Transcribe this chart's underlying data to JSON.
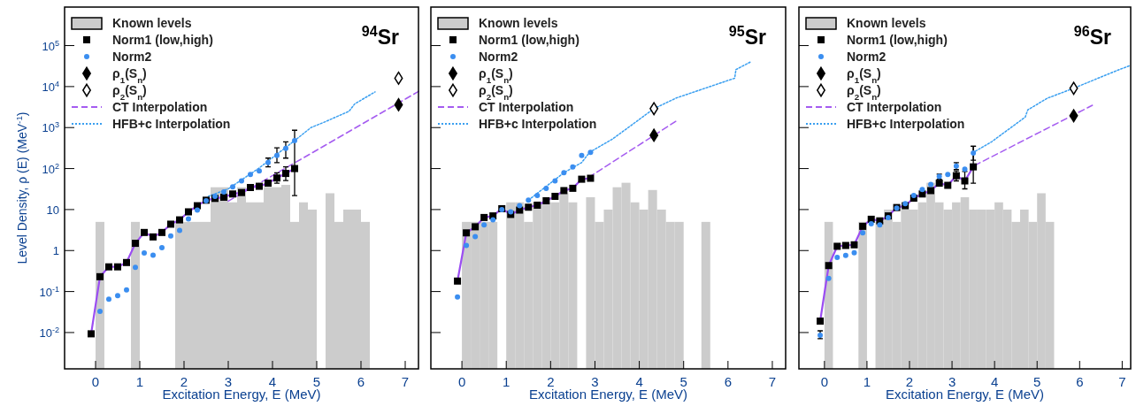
{
  "chart_data": [
    {
      "type": "scatter",
      "title": "$^{94}$Sr",
      "xlabel": "Excitation Energy, E (MeV)",
      "ylabel": "Level Density, ρ (E) (MeV$^{-1}$)",
      "log": "y",
      "grid": false,
      "legend": "top left",
      "xlim": [
        -0.7,
        7.3
      ],
      "xticks": [
        0,
        1,
        2,
        3,
        4,
        5,
        6,
        7
      ],
      "ylim": [
        0.0013,
        870000
      ],
      "yticks": [
        {
          "value": 0.01,
          "label": "10$^{-2}$"
        },
        {
          "value": 0.1,
          "label": "10$^{-1}$"
        },
        1,
        10,
        {
          "value": 100,
          "label": "10$^{2}$"
        },
        {
          "value": 1000,
          "label": "10$^{3}$"
        },
        {
          "value": 10000,
          "label": "10$^{4}$"
        },
        {
          "value": 100000,
          "label": "10$^{5}$"
        }
      ],
      "series": [
        {
          "name": "Known levels",
          "type": "histogram",
          "color": "#cccccc",
          "bins": [
            0,
            0.2,
            0.4,
            0.6,
            0.8,
            1.0,
            1.2,
            1.4,
            1.6,
            1.8,
            2.0,
            2.2,
            2.4,
            2.6,
            2.8,
            3.0,
            3.2,
            3.4,
            3.6,
            3.8,
            4.0,
            4.2,
            4.4,
            4.6,
            4.8,
            5.0,
            5.2,
            5.4,
            5.6,
            5.8,
            6.0,
            6.2
          ],
          "values": [
            5,
            null,
            null,
            null,
            5,
            null,
            null,
            null,
            null,
            5,
            5,
            5,
            5,
            35,
            35,
            15,
            35,
            15,
            15,
            35,
            35,
            40,
            5,
            15,
            10,
            null,
            25,
            5,
            10,
            10,
            5
          ]
        },
        {
          "name": "Norm1 (low,high)",
          "type": "scatter",
          "color": "#000000",
          "marker": "square",
          "x": [
            -0.1,
            0.1,
            0.3,
            0.5,
            0.7,
            0.9,
            1.1,
            1.3,
            1.5,
            1.7,
            1.9,
            2.1,
            2.3,
            2.5,
            2.7,
            2.9,
            3.1,
            3.3,
            3.5,
            3.7,
            3.9,
            4.1,
            4.3,
            4.5
          ],
          "values": [
            0.0093,
            0.23,
            0.4,
            0.4,
            0.51,
            1.5,
            2.76,
            2.15,
            2.76,
            4.4,
            5.6,
            8.8,
            12.4,
            16.9,
            18.7,
            20,
            24,
            26,
            34.5,
            37,
            44,
            59,
            76,
            100
          ],
          "errors": [
            null,
            null,
            null,
            null,
            null,
            null,
            null,
            null,
            null,
            null,
            null,
            null,
            null,
            null,
            null,
            null,
            null,
            null,
            null,
            null,
            null,
            [
              44,
              79
            ],
            [
              51,
              110
            ],
            [
              22,
              860
            ]
          ]
        },
        {
          "name": "Norm2",
          "type": "scatter",
          "color": "#3b8ef0",
          "marker": "circle",
          "x": [
            0.1,
            0.3,
            0.5,
            0.7,
            0.9,
            1.1,
            1.3,
            1.5,
            1.7,
            1.9,
            2.1,
            2.3,
            2.5,
            2.7,
            2.9,
            3.1,
            3.3,
            3.5,
            3.7,
            3.9,
            4.1,
            4.3,
            4.5
          ],
          "values": [
            0.033,
            0.065,
            0.079,
            0.11,
            0.39,
            0.87,
            0.77,
            1.17,
            2.27,
            3.1,
            5.9,
            9.7,
            16.4,
            21,
            27,
            36,
            50,
            72,
            88,
            140,
            210,
            310,
            480
          ],
          "errors": [
            null,
            null,
            null,
            null,
            null,
            null,
            null,
            null,
            null,
            null,
            null,
            null,
            null,
            null,
            null,
            null,
            null,
            null,
            null,
            [
              110,
              180
            ],
            [
              140,
              320
            ],
            [
              180,
              450
            ],
            null
          ]
        },
        {
          "name": "ρ$_{1}$(S$_{n}$)",
          "type": "scatter",
          "color": "#000000",
          "marker": "diamond",
          "x": [
            6.85
          ],
          "values": [
            3600
          ]
        },
        {
          "name": "ρ$_{2}$(S$_{n}$)",
          "type": "scatter",
          "color": "#ffffff",
          "marker": "diamond",
          "x": [
            6.85
          ],
          "values": [
            16000
          ]
        },
        {
          "name": "CT Interpolation",
          "type": "line",
          "color": "#a55cf0",
          "marker": "none",
          "line_style": "dashed",
          "x": [
            3.0,
            7.3
          ],
          "values": [
            16,
            7600
          ]
        },
        {
          "name": "HFB+c Interpolation",
          "type": "line",
          "color": "#3a9ff0",
          "marker": "none",
          "line_style": "dotted",
          "x": [
            2.55,
            3.0,
            3.68,
            4.5,
            4.87,
            5.2,
            5.73,
            5.86,
            6.32
          ],
          "values": [
            21,
            32,
            100,
            480,
            1000,
            1400,
            2500,
            3800,
            7400
          ]
        },
        {
          "type": "line",
          "color": "#9b4df2",
          "marker": "none",
          "line_style": "solid",
          "x": [
            -0.1,
            0.1,
            0.3,
            0.5,
            0.7,
            0.9,
            1.1,
            1.3,
            1.5,
            1.7,
            1.9,
            2.1,
            2.3,
            2.5,
            2.7,
            2.9,
            3.1,
            3.3,
            3.5,
            3.7,
            3.9,
            4.1,
            4.3,
            4.5
          ],
          "values": [
            0.0093,
            0.23,
            0.4,
            0.4,
            0.51,
            1.5,
            2.76,
            2.15,
            2.76,
            4.4,
            5.6,
            8.8,
            12.4,
            16.9,
            18.7,
            20,
            24,
            26,
            34.5,
            37,
            44,
            59,
            76,
            100
          ]
        }
      ]
    },
    {
      "type": "scatter",
      "title": "$^{95}$Sr",
      "xlabel": "Excitation Energy, E (MeV)",
      "log": "y",
      "grid": false,
      "legend": "top left",
      "tick_labels": "x",
      "xlim": [
        -0.7,
        7.3
      ],
      "xticks": [
        0,
        1,
        2,
        3,
        4,
        5,
        6,
        7
      ],
      "ylim": [
        0.0013,
        870000
      ],
      "yticks": [
        {
          "value": 0.01,
          "label": null
        },
        {
          "value": 0.1,
          "label": null
        },
        {
          "value": 1,
          "label": null
        },
        {
          "value": 10,
          "label": null
        },
        {
          "value": 100,
          "label": null
        },
        {
          "value": 1000,
          "label": null
        },
        {
          "value": 10000,
          "label": null
        },
        {
          "value": 100000,
          "label": null
        }
      ],
      "series": [
        {
          "name": "Known levels",
          "type": "histogram",
          "color": "#cccccc",
          "bins": [
            0,
            0.2,
            0.4,
            0.6,
            0.8,
            1.0,
            1.2,
            1.4,
            1.6,
            1.8,
            2.0,
            2.2,
            2.4,
            2.6,
            2.8,
            3.0,
            3.2,
            3.4,
            3.6,
            3.8,
            4.0,
            4.2,
            4.4,
            4.6,
            4.8,
            5.0,
            5.2,
            5.4,
            5.6
          ],
          "values": [
            5,
            5,
            5,
            5,
            null,
            15,
            15,
            5,
            15,
            15,
            15,
            25,
            15,
            null,
            20,
            5,
            10,
            35,
            45,
            15,
            10,
            30,
            10,
            5,
            5,
            null,
            null,
            5
          ]
        },
        {
          "name": "Norm1 (low,high)",
          "type": "scatter",
          "color": "#000000",
          "marker": "square",
          "x": [
            -0.1,
            0.1,
            0.3,
            0.5,
            0.7,
            0.9,
            1.1,
            1.3,
            1.5,
            1.7,
            1.9,
            2.1,
            2.3,
            2.5,
            2.7,
            2.9
          ],
          "values": [
            0.18,
            2.7,
            3.8,
            6.4,
            7.0,
            10.5,
            7.6,
            9.7,
            11.4,
            12.8,
            16.4,
            21,
            29,
            33,
            55,
            58
          ]
        },
        {
          "name": "Norm2",
          "type": "scatter",
          "color": "#3b8ef0",
          "marker": "circle",
          "x": [
            -0.1,
            0.1,
            0.3,
            0.5,
            0.7,
            0.9,
            1.1,
            1.3,
            1.5,
            1.7,
            1.9,
            2.1,
            2.3,
            2.5,
            2.7,
            2.9
          ],
          "values": [
            0.074,
            1.33,
            2.2,
            4.2,
            5.6,
            10,
            8.8,
            12.4,
            17,
            22,
            33,
            50,
            79,
            110,
            210,
            250
          ]
        },
        {
          "name": "ρ$_{1}$(S$_{n}$)",
          "type": "scatter",
          "color": "#000000",
          "marker": "diamond",
          "x": [
            4.33
          ],
          "values": [
            650
          ]
        },
        {
          "name": "ρ$_{2}$(S$_{n}$)",
          "type": "scatter",
          "color": "#ffffff",
          "marker": "diamond",
          "x": [
            4.33
          ],
          "values": [
            2900
          ]
        },
        {
          "name": "CT Interpolation",
          "type": "line",
          "color": "#a55cf0",
          "marker": "none",
          "line_style": "dashed",
          "x": [
            2.86,
            4.84
          ],
          "values": [
            61,
            1460
          ]
        },
        {
          "name": "HFB+c Interpolation",
          "type": "line",
          "color": "#3a9ff0",
          "marker": "none",
          "line_style": "dotted",
          "x": [
            1.5,
            2.3,
            2.7,
            2.88,
            3.39,
            3.85,
            4.33,
            4.84,
            6.15,
            6.18,
            6.51
          ],
          "values": [
            17,
            79,
            140,
            250,
            520,
            1200,
            2900,
            5300,
            16000,
            26000,
            40000
          ]
        },
        {
          "type": "line",
          "color": "#9b4df2",
          "marker": "none",
          "line_style": "solid",
          "x": [
            -0.1,
            0.1,
            0.3,
            0.5,
            0.7,
            0.9,
            1.1,
            1.3,
            1.5,
            1.7,
            1.9,
            2.1,
            2.3,
            2.5,
            2.7,
            2.9
          ],
          "values": [
            0.18,
            2.7,
            3.8,
            6.4,
            7.0,
            10.5,
            7.6,
            9.7,
            11.4,
            12.8,
            16.4,
            21,
            29,
            33,
            55,
            58
          ]
        }
      ]
    },
    {
      "type": "scatter",
      "title": "$^{96}$Sr",
      "xlabel": "Excitation Energy, E (MeV)",
      "log": "y",
      "grid": false,
      "legend": "top left",
      "tick_labels": "x",
      "xlim": [
        -0.6,
        7.2
      ],
      "xticks": [
        0,
        1,
        2,
        3,
        4,
        5,
        6,
        7
      ],
      "ylim": [
        0.0013,
        870000
      ],
      "yticks": [
        {
          "value": 0.01,
          "label": null
        },
        {
          "value": 0.1,
          "label": null
        },
        {
          "value": 1,
          "label": null
        },
        {
          "value": 10,
          "label": null
        },
        {
          "value": 100,
          "label": null
        },
        {
          "value": 1000,
          "label": null
        },
        {
          "value": 10000,
          "label": null
        },
        {
          "value": 100000,
          "label": null
        }
      ],
      "series": [
        {
          "name": "Known levels",
          "type": "histogram",
          "color": "#cccccc",
          "bins": [
            0,
            0.2,
            0.4,
            0.6,
            0.8,
            1.0,
            1.2,
            1.4,
            1.6,
            1.8,
            2.0,
            2.2,
            2.4,
            2.6,
            2.8,
            3.0,
            3.2,
            3.4,
            3.6,
            3.8,
            4.0,
            4.2,
            4.4,
            4.6,
            4.8,
            5.0,
            5.2,
            5.4
          ],
          "values": [
            5,
            null,
            null,
            null,
            5,
            null,
            5,
            10,
            5,
            10,
            10,
            15,
            45,
            15,
            10,
            15,
            20,
            10,
            10,
            10,
            15,
            10,
            5,
            10,
            5,
            25,
            5
          ]
        },
        {
          "name": "Norm1 (low,high)",
          "type": "scatter",
          "color": "#000000",
          "marker": "square",
          "x": [
            -0.1,
            0.1,
            0.3,
            0.5,
            0.7,
            0.9,
            1.1,
            1.3,
            1.5,
            1.7,
            1.9,
            2.1,
            2.3,
            2.5,
            2.7,
            2.9,
            3.1,
            3.3,
            3.5
          ],
          "values": [
            0.019,
            0.43,
            1.27,
            1.33,
            1.38,
            3.9,
            5.8,
            5.3,
            7.0,
            11.2,
            12.4,
            19,
            24,
            29,
            44,
            39,
            67,
            50,
            110
          ],
          "errors": [
            null,
            null,
            null,
            null,
            null,
            null,
            null,
            null,
            null,
            null,
            null,
            null,
            null,
            null,
            null,
            null,
            [
              50,
              88
            ],
            [
              32,
              85
            ],
            [
              44,
              350
            ]
          ]
        },
        {
          "name": "Norm2",
          "type": "scatter",
          "color": "#3b8ef0",
          "marker": "circle",
          "x": [
            -0.1,
            0.1,
            0.3,
            0.5,
            0.7,
            0.9,
            1.1,
            1.3,
            1.5,
            1.7,
            1.9,
            2.1,
            2.3,
            2.5,
            2.7,
            2.9,
            3.1,
            3.3,
            3.5
          ],
          "values": [
            0.0086,
            0.21,
            0.68,
            0.76,
            0.88,
            2.7,
            4.5,
            4.2,
            6.4,
            10.9,
            13.9,
            22,
            31,
            41,
            64,
            72,
            115,
            97,
            240
          ],
          "errors": [
            [
              0.0071,
              0.011
            ],
            null,
            null,
            null,
            null,
            null,
            null,
            null,
            null,
            null,
            null,
            null,
            null,
            null,
            [
              55,
              73
            ],
            null,
            [
              95,
              140
            ],
            null,
            [
              160,
              350
            ]
          ]
        },
        {
          "name": "ρ$_{1}$(S$_{n}$)",
          "type": "scatter",
          "color": "#000000",
          "marker": "diamond",
          "x": [
            5.86
          ],
          "values": [
            1950
          ]
        },
        {
          "name": "ρ$_{2}$(S$_{n}$)",
          "type": "scatter",
          "color": "#ffffff",
          "marker": "diamond",
          "x": [
            5.86
          ],
          "values": [
            9100
          ]
        },
        {
          "name": "CT Interpolation",
          "type": "line",
          "color": "#a55cf0",
          "marker": "none",
          "line_style": "dashed",
          "x": [
            3.53,
            6.3
          ],
          "values": [
            119,
            3500
          ]
        },
        {
          "name": "HFB+c Interpolation",
          "type": "line",
          "color": "#3a9ff0",
          "marker": "none",
          "line_style": "dotted",
          "x": [
            3.48,
            3.93,
            4.72,
            4.78,
            5.24,
            5.86,
            6.89,
            7.2
          ],
          "values": [
            240,
            450,
            1800,
            2700,
            5200,
            9100,
            25000,
            33000
          ]
        },
        {
          "type": "line",
          "color": "#9b4df2",
          "marker": "none",
          "line_style": "solid",
          "x": [
            -0.1,
            0.1,
            0.3,
            0.5,
            0.7,
            0.9,
            1.1,
            1.3,
            1.5,
            1.7,
            1.9,
            2.1,
            2.3,
            2.5,
            2.7,
            2.9,
            3.1,
            3.3,
            3.5
          ],
          "values": [
            0.019,
            0.43,
            1.27,
            1.33,
            1.38,
            3.9,
            5.8,
            5.3,
            7.0,
            11.2,
            12.4,
            19,
            24,
            29,
            44,
            39,
            67,
            50,
            110
          ]
        }
      ]
    }
  ]
}
